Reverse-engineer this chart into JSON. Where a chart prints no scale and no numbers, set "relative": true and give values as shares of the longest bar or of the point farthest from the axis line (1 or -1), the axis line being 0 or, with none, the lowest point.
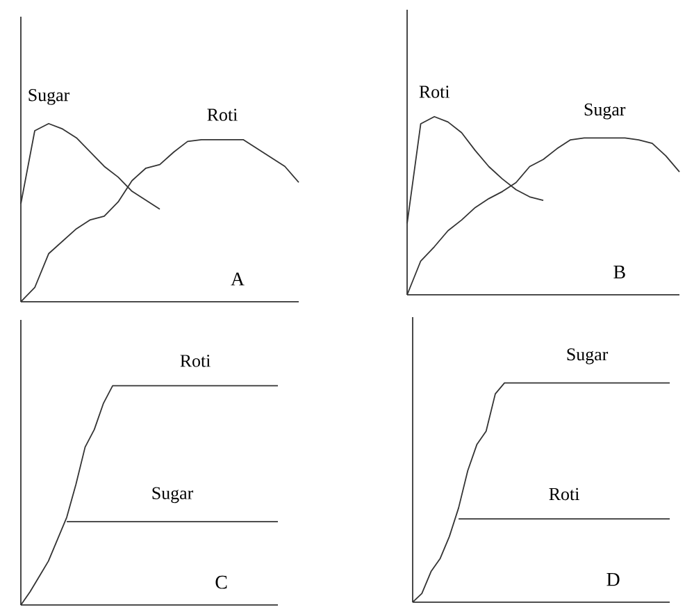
{
  "chart_data": [
    {
      "type": "line",
      "relative": true,
      "annotations": [
        "A"
      ],
      "categories": [
        null,
        null,
        null,
        null,
        null,
        null,
        null,
        null,
        null,
        null,
        null,
        null,
        null,
        null,
        null,
        null,
        null,
        null,
        null,
        null,
        null
      ],
      "series": [
        {
          "name": "Sugar",
          "color": "#333333",
          "values": [
            0.55,
            0.96,
            1.0,
            0.97,
            0.92,
            0.84,
            0.76,
            0.7,
            0.62,
            0.57,
            0.52,
            null,
            null,
            null,
            null,
            null,
            null,
            null,
            null,
            null,
            null
          ]
        },
        {
          "name": "Roti",
          "color": "#333333",
          "values": [
            0,
            0.08,
            0.27,
            0.34,
            0.41,
            0.46,
            0.48,
            0.56,
            0.68,
            0.75,
            0.77,
            0.84,
            0.9,
            0.91,
            0.91,
            0.91,
            0.91,
            0.86,
            0.81,
            0.76,
            0.67
          ]
        }
      ]
    },
    {
      "type": "line",
      "relative": true,
      "annotations": [
        "B"
      ],
      "categories": [
        null,
        null,
        null,
        null,
        null,
        null,
        null,
        null,
        null,
        null,
        null,
        null,
        null,
        null,
        null,
        null,
        null,
        null,
        null,
        null,
        null
      ],
      "series": [
        {
          "name": "Roti",
          "color": "#333333",
          "values": [
            0.4,
            0.96,
            1.0,
            0.97,
            0.91,
            0.81,
            0.72,
            0.65,
            0.59,
            0.55,
            0.53,
            null,
            null,
            null,
            null,
            null,
            null,
            null,
            null,
            null,
            null
          ]
        },
        {
          "name": "Sugar",
          "color": "#333333",
          "values": [
            0,
            0.19,
            0.27,
            0.36,
            0.42,
            0.49,
            0.54,
            0.58,
            0.63,
            0.72,
            0.76,
            0.82,
            0.87,
            0.88,
            0.88,
            0.88,
            0.88,
            0.87,
            0.85,
            0.78,
            0.69
          ]
        }
      ]
    },
    {
      "type": "line",
      "relative": true,
      "annotations": [
        "C"
      ],
      "categories": [
        null,
        null,
        null,
        null,
        null,
        null,
        null,
        null,
        null,
        null,
        null,
        null,
        null,
        null,
        null,
        null,
        null,
        null,
        null,
        null,
        null,
        null,
        null,
        null,
        null,
        null,
        null,
        null,
        null
      ],
      "series": [
        {
          "name": "Roti",
          "color": "#333333",
          "values": [
            0,
            0.06,
            0.13,
            0.2,
            0.3,
            0.4,
            0.55,
            0.72,
            0.8,
            0.92,
            1,
            1,
            1,
            1,
            1,
            1,
            1,
            1,
            1,
            1,
            1,
            1,
            1,
            1,
            1,
            1,
            1,
            1,
            1
          ]
        },
        {
          "name": "Sugar",
          "color": "#333333",
          "values": [
            null,
            null,
            null,
            null,
            null,
            0.38,
            0.38,
            0.38,
            0.38,
            0.38,
            0.38,
            0.38,
            0.38,
            0.38,
            0.38,
            0.38,
            0.38,
            0.38,
            0.38,
            0.38,
            0.38,
            0.38,
            0.38,
            0.38,
            0.38,
            0.38,
            0.38,
            0.38,
            0.38
          ]
        }
      ]
    },
    {
      "type": "line",
      "relative": true,
      "annotations": [
        "D"
      ],
      "categories": [
        null,
        null,
        null,
        null,
        null,
        null,
        null,
        null,
        null,
        null,
        null,
        null,
        null,
        null,
        null,
        null,
        null,
        null,
        null,
        null,
        null,
        null,
        null,
        null,
        null,
        null,
        null,
        null,
        null
      ],
      "series": [
        {
          "name": "Sugar",
          "color": "#333333",
          "values": [
            0,
            0.04,
            0.14,
            0.2,
            0.3,
            0.43,
            0.6,
            0.72,
            0.78,
            0.95,
            1,
            1,
            1,
            1,
            1,
            1,
            1,
            1,
            1,
            1,
            1,
            1,
            1,
            1,
            1,
            1,
            1,
            1,
            1
          ]
        },
        {
          "name": "Roti",
          "color": "#333333",
          "values": [
            null,
            null,
            null,
            null,
            null,
            0.38,
            0.38,
            0.38,
            0.38,
            0.38,
            0.38,
            0.38,
            0.38,
            0.38,
            0.38,
            0.38,
            0.38,
            0.38,
            0.38,
            0.38,
            0.38,
            0.38,
            0.38,
            0.38,
            0.38,
            0.38,
            0.38,
            0.38,
            0.38
          ]
        }
      ]
    }
  ]
}
